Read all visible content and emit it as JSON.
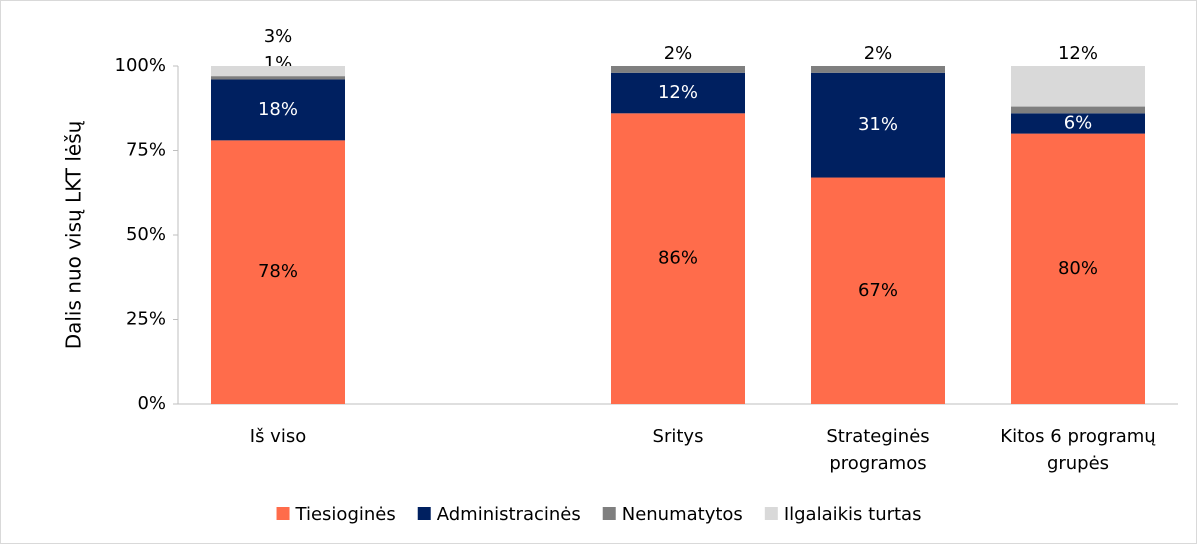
{
  "chart_data": {
    "type": "stacked_bar",
    "y_label": "Dalis nuo visų LKT lėšų",
    "categories": [
      "Iš viso",
      null,
      "Sritys",
      "Strateginės programos",
      "Kitos 6 programų grupės"
    ],
    "series": [
      {
        "name": "Tiesioginės",
        "color": "#ff6c4b",
        "values": [
          78,
          null,
          86,
          67,
          80
        ],
        "value_labels": [
          "78%",
          null,
          "86%",
          "67%",
          "80%"
        ]
      },
      {
        "name": "Administracinės",
        "color": "#002060",
        "values": [
          18,
          null,
          12,
          31,
          6
        ],
        "value_labels": [
          "18%",
          null,
          "12%",
          "31%",
          "6%"
        ]
      },
      {
        "name": "Nenumatytos",
        "color": "#7f7f7f",
        "values": [
          1,
          null,
          2,
          2,
          2
        ],
        "value_labels": [
          "1%",
          null,
          "2%",
          "2%",
          "2%"
        ]
      },
      {
        "name": "Ilgalaikis turtas",
        "color": "#d9d9d9",
        "values": [
          3,
          null,
          null,
          null,
          12
        ],
        "value_labels": [
          "3%",
          null,
          null,
          null,
          "12%"
        ]
      }
    ],
    "ylim": [
      0,
      100
    ],
    "yticks": [
      {
        "value": 0,
        "label": "0%"
      },
      {
        "value": 25,
        "label": "25%"
      },
      {
        "value": 50,
        "label": "50%"
      },
      {
        "value": 75,
        "label": "75%"
      },
      {
        "value": 100,
        "label": "100%"
      }
    ],
    "grid": false,
    "legend": "bottom"
  }
}
